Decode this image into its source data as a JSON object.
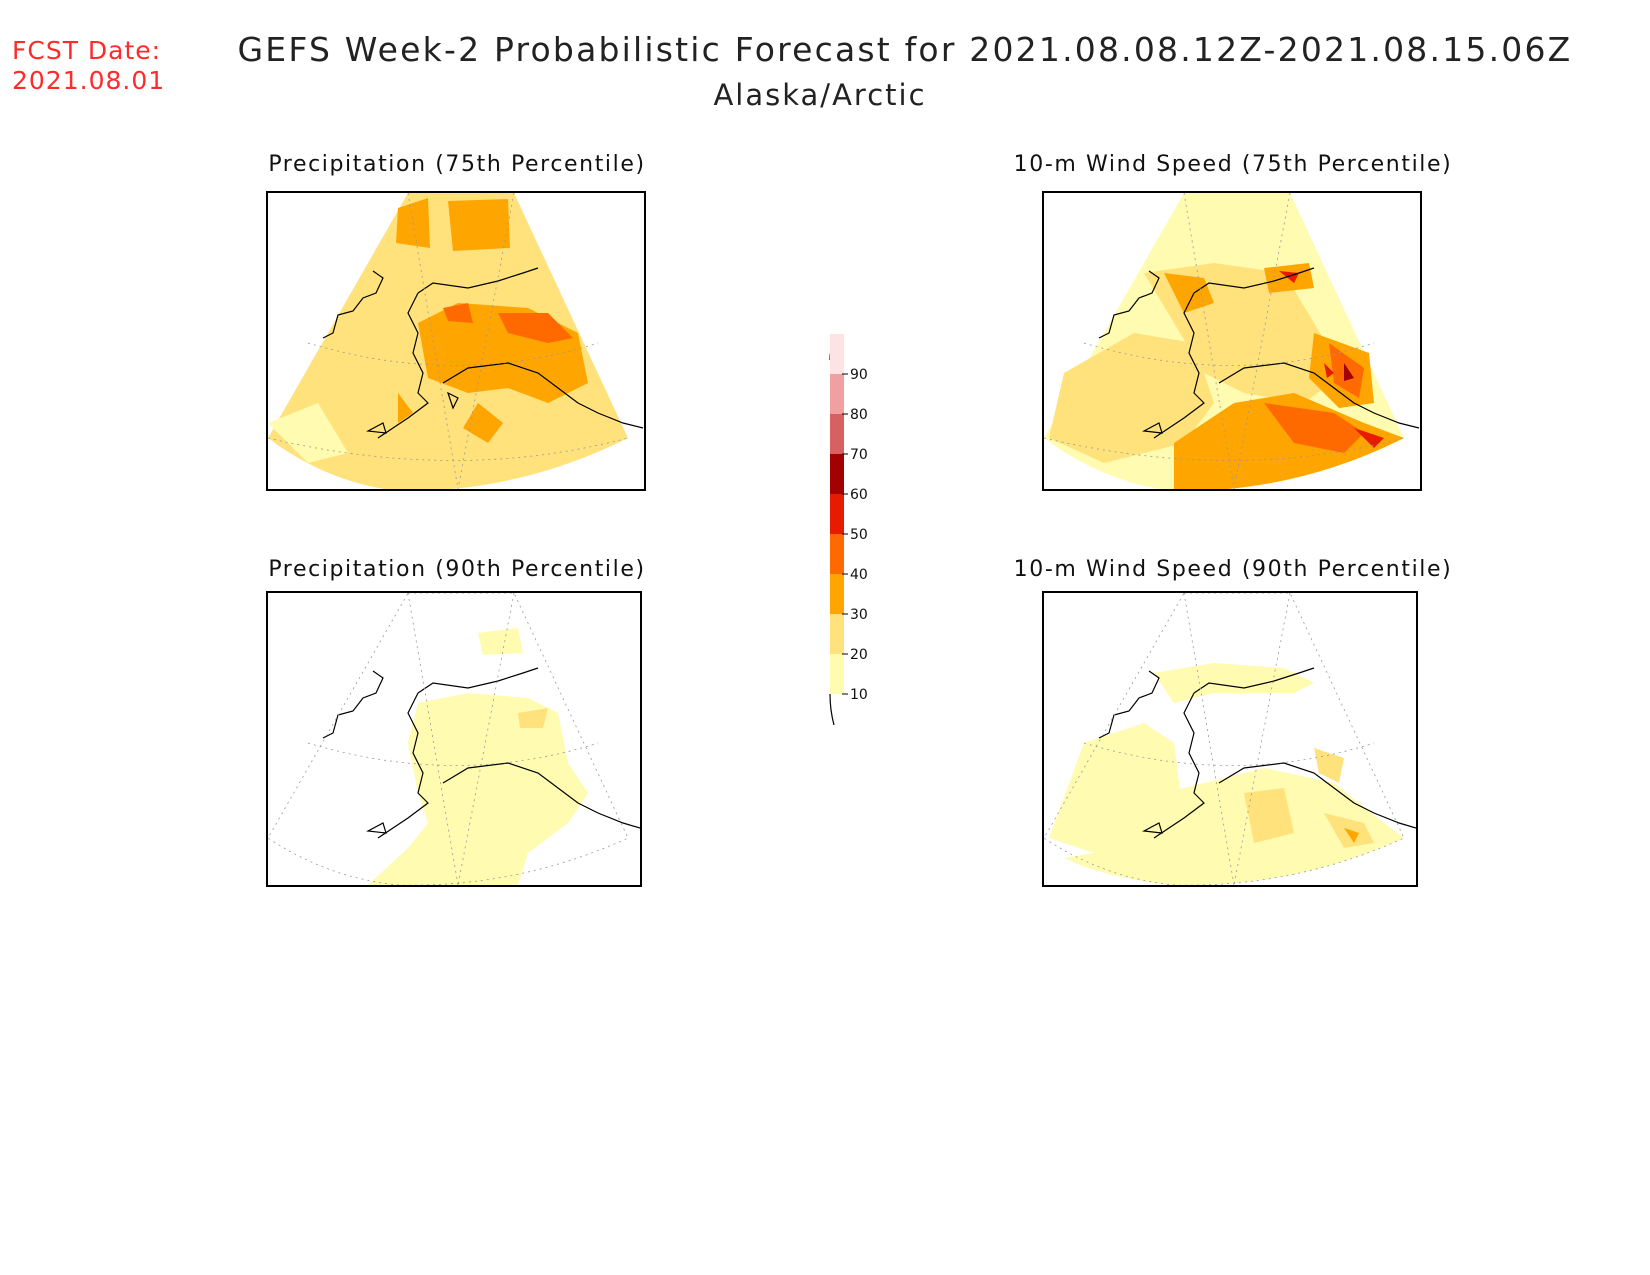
{
  "header": {
    "fcst_label": "FCST Date:",
    "fcst_date": "2021.08.01",
    "title": "GEFS Week-2 Probabilistic Forecast for 2021.08.08.12Z-2021.08.15.06Z",
    "region": "Alaska/Arctic"
  },
  "panels": [
    {
      "id": "precip-75",
      "title": "Precipitation (75th Percentile)"
    },
    {
      "id": "wind-75",
      "title": "10-m Wind Speed (75th Percentile)"
    },
    {
      "id": "precip-90",
      "title": "Precipitation (90th Percentile)"
    },
    {
      "id": "wind-90",
      "title": "10-m Wind Speed (90th Percentile)"
    }
  ],
  "legend": {
    "ticks": [
      "10",
      "20",
      "30",
      "40",
      "50",
      "60",
      "70",
      "80",
      "90"
    ],
    "colors": [
      "#fffbb0",
      "#ffe27c",
      "#ffa500",
      "#ff6a00",
      "#e61b00",
      "#a30000",
      "#d96060",
      "#f0a0a0",
      "#fde3e3"
    ]
  }
}
